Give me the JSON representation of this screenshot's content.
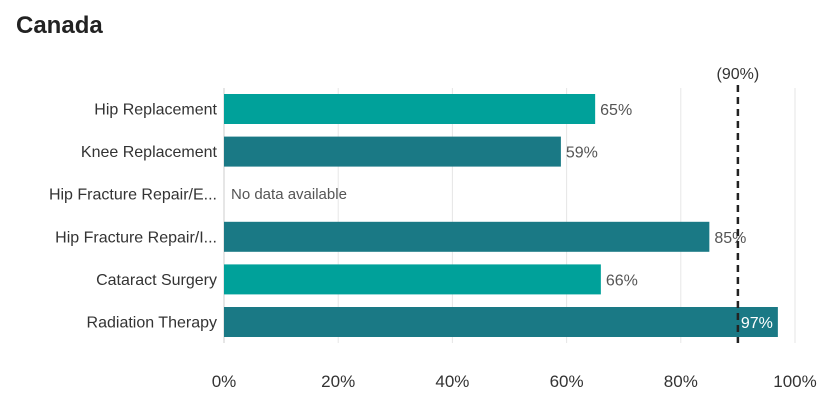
{
  "chart_data": {
    "type": "bar",
    "orientation": "horizontal",
    "title": "Canada",
    "categories": [
      "Hip Replacement",
      "Knee Replacement",
      "Hip Fracture Repair/E...",
      "Hip Fracture Repair/I...",
      "Cataract Surgery",
      "Radiation Therapy"
    ],
    "values": [
      65,
      59,
      null,
      85,
      66,
      97
    ],
    "value_labels": [
      "65%",
      "59%",
      "No data available",
      "85%",
      "66%",
      "97%"
    ],
    "bar_colors": [
      "#00a19a",
      "#1a7985",
      "#1a7985",
      "#1a7985",
      "#00a19a",
      "#1a7985"
    ],
    "xlim": [
      0,
      100
    ],
    "xticks": [
      0,
      20,
      40,
      60,
      80,
      100
    ],
    "xtick_labels": [
      "0%",
      "20%",
      "40%",
      "60%",
      "80%",
      "100%"
    ],
    "grid": true,
    "benchmark": {
      "value": 90,
      "label": "(90%)"
    }
  }
}
